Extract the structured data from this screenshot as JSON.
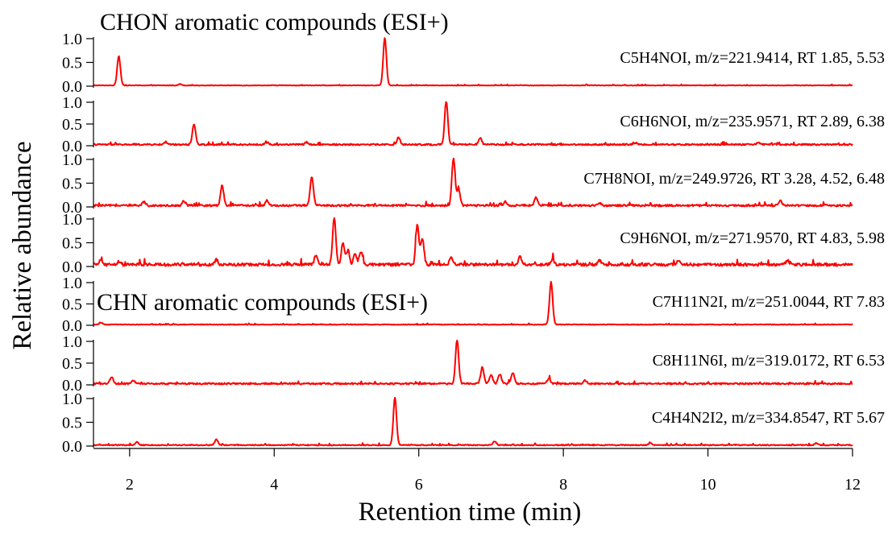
{
  "chart_data": {
    "type": "line",
    "ylabel": "Relative abundance",
    "xlabel": "Retention time (min)",
    "xlim": [
      1.5,
      12
    ],
    "xticks": [
      2,
      4,
      6,
      8,
      10,
      12
    ],
    "x_tick_labels": [
      "2",
      "4",
      "6",
      "8",
      "10",
      "12"
    ],
    "ylim": [
      0,
      1
    ],
    "yticks": [
      0,
      0.5,
      1.0
    ],
    "y_tick_labels": [
      "0.0",
      "0.5",
      "1.0"
    ],
    "line_color": "#ff0000",
    "group_titles": [
      {
        "text": "CHON aromatic compounds (ESI+)",
        "panel": 0
      },
      {
        "text": "CHN aromatic compounds (ESI+)",
        "panel": 4
      }
    ],
    "series": [
      {
        "label": "C5H4NOI, m/z=221.9414, RT 1.85, 5.53",
        "peaks": [
          [
            1.85,
            0.62
          ],
          [
            2.7,
            0.03
          ],
          [
            5.53,
            1.0
          ]
        ],
        "noise": 0.012
      },
      {
        "label": "C6H6NOI, m/z=235.9571, RT 2.89, 6.38",
        "peaks": [
          [
            2.89,
            0.48
          ],
          [
            2.5,
            0.06
          ],
          [
            3.9,
            0.05
          ],
          [
            4.45,
            0.06
          ],
          [
            5.72,
            0.16
          ],
          [
            6.38,
            1.0
          ],
          [
            6.85,
            0.14
          ],
          [
            9.0,
            0.04
          ],
          [
            10.7,
            0.05
          ]
        ],
        "noise": 0.035
      },
      {
        "label": "C7H8NOI, m/z=249.9726, RT 3.28, 4.52, 6.48",
        "peaks": [
          [
            2.2,
            0.08
          ],
          [
            2.75,
            0.1
          ],
          [
            3.28,
            0.42
          ],
          [
            3.9,
            0.1
          ],
          [
            4.52,
            0.62
          ],
          [
            6.48,
            1.0
          ],
          [
            6.55,
            0.35
          ],
          [
            7.2,
            0.08
          ],
          [
            7.62,
            0.16
          ],
          [
            8.5,
            0.06
          ],
          [
            11.0,
            0.1
          ]
        ],
        "noise": 0.04
      },
      {
        "label": "C9H6NOI, m/z=271.9570, RT 4.83, 5.98",
        "peaks": [
          [
            1.6,
            0.1
          ],
          [
            1.85,
            0.06
          ],
          [
            3.2,
            0.1
          ],
          [
            4.58,
            0.2
          ],
          [
            4.83,
            1.0
          ],
          [
            4.95,
            0.45
          ],
          [
            5.02,
            0.3
          ],
          [
            5.12,
            0.22
          ],
          [
            5.2,
            0.28
          ],
          [
            5.98,
            0.84
          ],
          [
            6.05,
            0.55
          ],
          [
            6.45,
            0.15
          ],
          [
            7.4,
            0.18
          ],
          [
            7.85,
            0.12
          ],
          [
            8.5,
            0.1
          ],
          [
            9.6,
            0.09
          ],
          [
            11.1,
            0.09
          ]
        ],
        "noise": 0.06
      },
      {
        "label": "C7H11N2I, m/z=251.0044, RT 7.83",
        "peaks": [
          [
            1.6,
            0.04
          ],
          [
            7.83,
            1.0
          ]
        ],
        "noise": 0.015
      },
      {
        "label": "C8H11N6I, m/z=319.0172, RT 6.53",
        "peaks": [
          [
            1.75,
            0.16
          ],
          [
            2.05,
            0.08
          ],
          [
            6.53,
            1.0
          ],
          [
            6.88,
            0.38
          ],
          [
            7.0,
            0.2
          ],
          [
            7.12,
            0.22
          ],
          [
            7.3,
            0.26
          ],
          [
            7.8,
            0.12
          ],
          [
            8.3,
            0.08
          ]
        ],
        "noise": 0.035
      },
      {
        "label": "C4H4N2I2, m/z=334.8547, RT 5.67",
        "peaks": [
          [
            2.1,
            0.07
          ],
          [
            3.2,
            0.12
          ],
          [
            5.67,
            1.0
          ],
          [
            7.05,
            0.08
          ],
          [
            9.2,
            0.04
          ],
          [
            11.5,
            0.04
          ]
        ],
        "noise": 0.02
      }
    ]
  }
}
